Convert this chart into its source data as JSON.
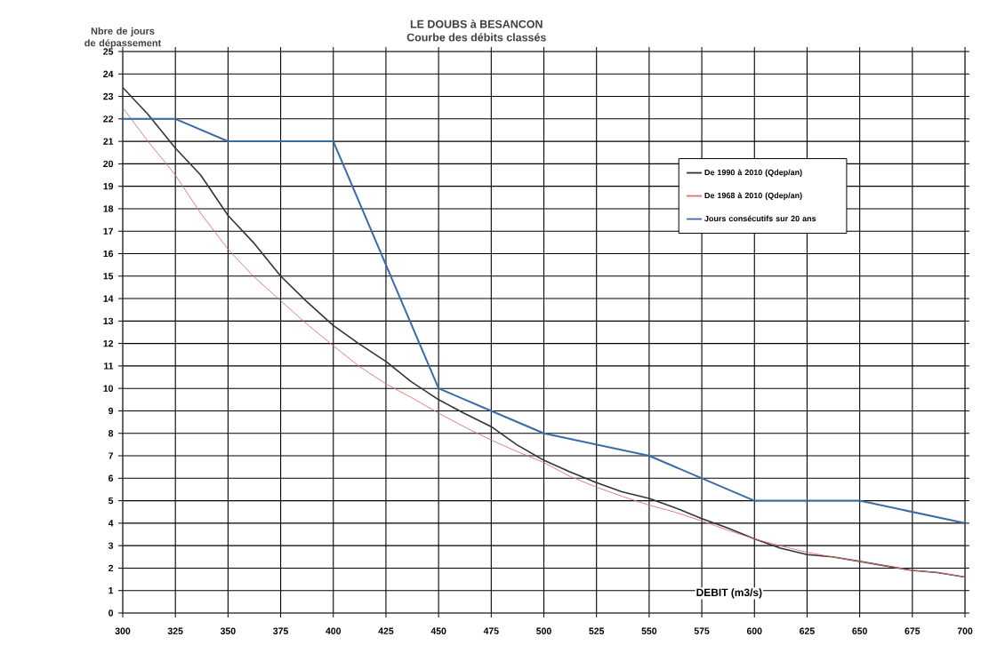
{
  "chart_data": {
    "type": "line",
    "title": "LE DOUBS à BESANCON",
    "subtitle": "Courbe des débits classés",
    "xlabel": "DEBIT (m3/s)",
    "ylabel": "Nbre de jours de dépassement",
    "x": [
      300,
      312,
      325,
      337,
      350,
      362,
      375,
      387,
      400,
      412,
      425,
      437,
      450,
      462,
      475,
      487,
      500,
      512,
      525,
      537,
      550,
      562,
      575,
      587,
      600,
      612,
      625,
      637,
      650,
      662,
      675,
      687,
      700
    ],
    "series": [
      {
        "name": "De 1990 à 2010 (Qdep/an)",
        "color": "#333333",
        "values": [
          23.4,
          22.2,
          20.7,
          19.5,
          17.7,
          16.5,
          15,
          13.9,
          12.8,
          12.0,
          11.2,
          10.3,
          9.5,
          8.9,
          8.3,
          7.5,
          6.8,
          6.3,
          5.8,
          5.4,
          5.1,
          4.7,
          4.2,
          3.8,
          3.3,
          2.9,
          2.6,
          2.5,
          2.3,
          2.1,
          1.9,
          1.8,
          1.6
        ]
      },
      {
        "name": "De 1968 à 2010 (Qdep/an)",
        "color": "#e07070",
        "values": [
          22.5,
          21.0,
          19.5,
          17.8,
          16.2,
          15.0,
          13.9,
          12.9,
          11.9,
          11.0,
          10.2,
          9.6,
          8.9,
          8.3,
          7.7,
          7.2,
          6.7,
          6.1,
          5.6,
          5.2,
          4.8,
          4.5,
          4.1,
          3.7,
          3.3,
          3.0,
          2.7,
          2.5,
          2.3,
          2.1,
          1.9,
          1.8,
          1.6
        ]
      },
      {
        "name": "Jours consécutifs sur 20 ans",
        "color": "#3a6aa8",
        "x": [
          300,
          325,
          350,
          400,
          425,
          450,
          475,
          500,
          550,
          575,
          600,
          650,
          700
        ],
        "values": [
          22,
          22,
          21,
          21,
          15.5,
          10,
          9,
          8,
          7,
          6,
          5,
          5,
          4
        ]
      }
    ],
    "xlim": [
      300,
      700
    ],
    "xticks": [
      300,
      325,
      350,
      375,
      400,
      425,
      450,
      475,
      500,
      525,
      550,
      575,
      600,
      625,
      650,
      675,
      700
    ],
    "ylim": [
      0,
      25
    ],
    "yticks": [
      0,
      1,
      2,
      3,
      4,
      5,
      6,
      7,
      8,
      9,
      10,
      11,
      12,
      13,
      14,
      15,
      16,
      17,
      18,
      19,
      20,
      21,
      22,
      23,
      24,
      25
    ],
    "grid": true,
    "legend": "top right",
    "marker": "none",
    "line_style": "solid"
  }
}
